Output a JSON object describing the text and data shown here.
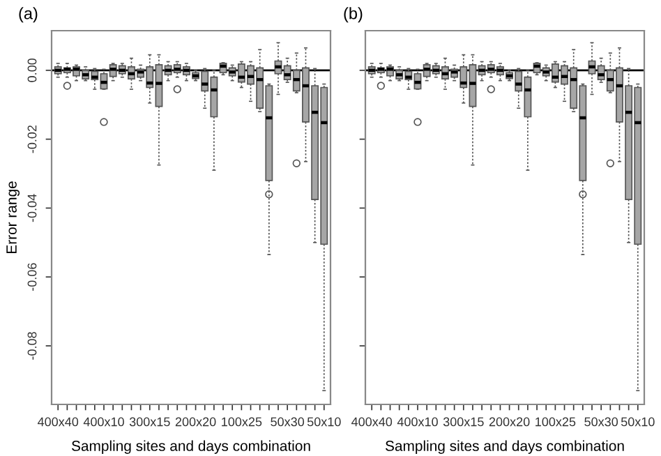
{
  "chart_data": [
    {
      "type": "box",
      "title": "(a)",
      "xlabel": "Sampling sites and days combination",
      "ylabel": "Error range",
      "categories": [
        "400x40",
        null,
        null,
        null,
        null,
        "400x10",
        null,
        null,
        null,
        null,
        "300x15",
        null,
        null,
        null,
        null,
        "200x20",
        null,
        null,
        null,
        null,
        "100x25",
        null,
        null,
        null,
        null,
        "50x30",
        null,
        null,
        null,
        "50x10"
      ],
      "ylim": [
        -0.097,
        0.0115
      ],
      "yticks": [
        {
          "value": 0,
          "label": "0.00"
        },
        {
          "value": -0.02,
          "label": "-0.02"
        },
        {
          "value": -0.04,
          "label": "-0.04"
        },
        {
          "value": -0.06,
          "label": "-0.06"
        },
        {
          "value": -0.08,
          "label": "-0.08"
        }
      ],
      "ref_lines": [
        {
          "axis": "y",
          "value": 0,
          "color": "#000000"
        }
      ],
      "series": [
        {
          "color": "#a6a6a6",
          "boxes": [
            {
              "low": -0.002,
              "q1": -0.001,
              "median": 0,
              "q3": 0.001,
              "high": 0.002
            },
            {
              "low": -0.002,
              "q1": -0.0007,
              "median": 0.0003,
              "q3": 0.0007,
              "high": 0.002,
              "outliers": [
                -0.0045
              ]
            },
            {
              "low": -0.003,
              "q1": -0.0016,
              "median": 0.0003,
              "q3": 0.001,
              "high": 0.0015
            },
            {
              "low": -0.003,
              "q1": -0.0025,
              "median": -0.0013,
              "q3": 0,
              "high": 0.001
            },
            {
              "low": -0.0055,
              "q1": -0.0027,
              "median": -0.002,
              "q3": -0.0003,
              "high": 0.0005
            },
            {
              "low": -0.0055,
              "q1": -0.0054,
              "median": -0.0035,
              "q3": -0.001,
              "high": 0.0003,
              "outliers": [
                -0.015
              ]
            },
            {
              "low": -0.003,
              "q1": -0.0018,
              "median": 0.0003,
              "q3": 0.0016,
              "high": 0.002
            },
            {
              "low": -0.002,
              "q1": -0.001,
              "median": 0,
              "q3": 0.0013,
              "high": 0.002
            },
            {
              "low": -0.0055,
              "q1": -0.0025,
              "median": -0.001,
              "q3": 0.001,
              "high": 0.0035
            },
            {
              "low": -0.003,
              "q1": -0.002,
              "median": -0.0005,
              "q3": 0.0003,
              "high": 0.0015
            },
            {
              "low": -0.0095,
              "q1": -0.005,
              "median": -0.0037,
              "q3": 0.001,
              "high": 0.0045
            },
            {
              "low": -0.0275,
              "q1": -0.0105,
              "median": -0.0038,
              "q3": 0.0016,
              "high": 0.0045
            },
            {
              "low": -0.003,
              "q1": -0.0013,
              "median": 0,
              "q3": 0.0013,
              "high": 0.0025
            },
            {
              "low": -0.002,
              "q1": -0.0007,
              "median": 0.0003,
              "q3": 0.0016,
              "high": 0.0025,
              "outliers": [
                -0.0055
              ]
            },
            {
              "low": -0.003,
              "q1": -0.0013,
              "median": 0,
              "q3": 0.001,
              "high": 0.002
            },
            {
              "low": -0.003,
              "q1": -0.0024,
              "median": -0.0016,
              "q3": -0.0007,
              "high": 0
            },
            {
              "low": -0.011,
              "q1": -0.006,
              "median": -0.004,
              "q3": -0.0003,
              "high": 0.0005
            },
            {
              "low": -0.029,
              "q1": -0.0135,
              "median": -0.0057,
              "q3": -0.002,
              "high": 0
            },
            {
              "low": -0.0013,
              "q1": -0.0007,
              "median": 0.0012,
              "q3": 0.002,
              "high": 0.0022
            },
            {
              "low": -0.003,
              "q1": -0.0016,
              "median": -0.0005,
              "q3": 0.0007,
              "high": 0.0015
            },
            {
              "low": -0.005,
              "q1": -0.0034,
              "median": -0.002,
              "q3": 0.0018,
              "high": 0.0025
            },
            {
              "low": -0.009,
              "q1": -0.004,
              "median": -0.0018,
              "q3": 0.0013,
              "high": 0.0025
            },
            {
              "low": -0.012,
              "q1": -0.011,
              "median": -0.0027,
              "q3": 0.0007,
              "high": 0.006
            },
            {
              "low": -0.0535,
              "q1": -0.032,
              "median": -0.0138,
              "q3": -0.0045,
              "high": -0.004,
              "outliers": [
                -0.036
              ]
            },
            {
              "low": -0.007,
              "q1": -0.001,
              "median": 0.001,
              "q3": 0.0027,
              "high": 0.008
            },
            {
              "low": -0.0035,
              "q1": -0.0027,
              "median": -0.0013,
              "q3": 0.0013,
              "high": 0.0035
            },
            {
              "low": -0.0065,
              "q1": -0.006,
              "median": -0.0027,
              "q3": 0,
              "high": 0.005,
              "outliers": [
                -0.027
              ]
            },
            {
              "low": -0.0265,
              "q1": -0.015,
              "median": -0.0045,
              "q3": 0.0007,
              "high": 0.0065
            },
            {
              "low": -0.05,
              "q1": -0.0375,
              "median": -0.0122,
              "q3": -0.0045,
              "high": 0.0005
            },
            {
              "low": -0.093,
              "q1": -0.0505,
              "median": -0.0152,
              "q3": -0.005,
              "high": -0.004
            }
          ]
        }
      ]
    },
    {
      "type": "box",
      "title": "(b)",
      "xlabel": "Sampling sites and days combination",
      "tick_labels": "x",
      "categories": [
        "400x40",
        null,
        null,
        null,
        null,
        "400x10",
        null,
        null,
        null,
        null,
        "300x15",
        null,
        null,
        null,
        null,
        "200x20",
        null,
        null,
        null,
        null,
        "100x25",
        null,
        null,
        null,
        null,
        "50x30",
        null,
        null,
        null,
        "50x10"
      ],
      "ylim": [
        -0.097,
        0.0115
      ],
      "yticks": [
        {
          "value": 0,
          "label": null
        },
        {
          "value": -0.02,
          "label": null
        },
        {
          "value": -0.04,
          "label": null
        },
        {
          "value": -0.06,
          "label": null
        },
        {
          "value": -0.08,
          "label": null
        }
      ],
      "ref_lines": [
        {
          "axis": "y",
          "value": 0,
          "color": "#000000"
        }
      ],
      "series": [
        {
          "color": "#a6a6a6",
          "boxes": [
            {
              "low": -0.002,
              "q1": -0.001,
              "median": 0,
              "q3": 0.001,
              "high": 0.002
            },
            {
              "low": -0.002,
              "q1": -0.0007,
              "median": 0.0003,
              "q3": 0.0007,
              "high": 0.002,
              "outliers": [
                -0.0045
              ]
            },
            {
              "low": -0.003,
              "q1": -0.0016,
              "median": 0.0003,
              "q3": 0.001,
              "high": 0.0015
            },
            {
              "low": -0.003,
              "q1": -0.0025,
              "median": -0.0013,
              "q3": 0,
              "high": 0.001
            },
            {
              "low": -0.0055,
              "q1": -0.0027,
              "median": -0.002,
              "q3": -0.0003,
              "high": 0.0005
            },
            {
              "low": -0.0055,
              "q1": -0.0054,
              "median": -0.0035,
              "q3": -0.001,
              "high": 0.0003,
              "outliers": [
                -0.015
              ]
            },
            {
              "low": -0.003,
              "q1": -0.0018,
              "median": 0.0003,
              "q3": 0.0016,
              "high": 0.002
            },
            {
              "low": -0.002,
              "q1": -0.001,
              "median": 0,
              "q3": 0.0013,
              "high": 0.002
            },
            {
              "low": -0.0055,
              "q1": -0.0025,
              "median": -0.001,
              "q3": 0.001,
              "high": 0.0035
            },
            {
              "low": -0.003,
              "q1": -0.002,
              "median": -0.0005,
              "q3": 0.0003,
              "high": 0.0015
            },
            {
              "low": -0.0095,
              "q1": -0.005,
              "median": -0.0037,
              "q3": 0.001,
              "high": 0.0045
            },
            {
              "low": -0.0275,
              "q1": -0.0105,
              "median": -0.0038,
              "q3": 0.0016,
              "high": 0.0045
            },
            {
              "low": -0.003,
              "q1": -0.0013,
              "median": 0,
              "q3": 0.0013,
              "high": 0.0025
            },
            {
              "low": -0.002,
              "q1": -0.0007,
              "median": 0.0003,
              "q3": 0.0016,
              "high": 0.0025,
              "outliers": [
                -0.0055
              ]
            },
            {
              "low": -0.003,
              "q1": -0.0013,
              "median": 0,
              "q3": 0.001,
              "high": 0.002
            },
            {
              "low": -0.003,
              "q1": -0.0024,
              "median": -0.0016,
              "q3": -0.0007,
              "high": 0
            },
            {
              "low": -0.011,
              "q1": -0.006,
              "median": -0.004,
              "q3": -0.0003,
              "high": 0.0005
            },
            {
              "low": -0.029,
              "q1": -0.0135,
              "median": -0.0057,
              "q3": -0.002,
              "high": 0
            },
            {
              "low": -0.0013,
              "q1": -0.0007,
              "median": 0.0012,
              "q3": 0.002,
              "high": 0.0022
            },
            {
              "low": -0.003,
              "q1": -0.0016,
              "median": -0.0005,
              "q3": 0.0007,
              "high": 0.0015
            },
            {
              "low": -0.005,
              "q1": -0.0034,
              "median": -0.002,
              "q3": 0.0018,
              "high": 0.0025
            },
            {
              "low": -0.009,
              "q1": -0.004,
              "median": -0.0018,
              "q3": 0.0013,
              "high": 0.0025
            },
            {
              "low": -0.012,
              "q1": -0.011,
              "median": -0.0027,
              "q3": 0.0007,
              "high": 0.006
            },
            {
              "low": -0.0535,
              "q1": -0.032,
              "median": -0.0138,
              "q3": -0.0045,
              "high": -0.004,
              "outliers": [
                -0.036
              ]
            },
            {
              "low": -0.007,
              "q1": -0.001,
              "median": 0.001,
              "q3": 0.0027,
              "high": 0.008
            },
            {
              "low": -0.0035,
              "q1": -0.0027,
              "median": -0.0013,
              "q3": 0.0013,
              "high": 0.0035
            },
            {
              "low": -0.0065,
              "q1": -0.006,
              "median": -0.0027,
              "q3": 0,
              "high": 0.005,
              "outliers": [
                -0.027
              ]
            },
            {
              "low": -0.0265,
              "q1": -0.015,
              "median": -0.0045,
              "q3": 0.0007,
              "high": 0.0065
            },
            {
              "low": -0.05,
              "q1": -0.0375,
              "median": -0.0122,
              "q3": -0.0045,
              "high": 0.0005
            },
            {
              "low": -0.093,
              "q1": -0.0505,
              "median": -0.0152,
              "q3": -0.005,
              "high": -0.004
            }
          ]
        }
      ]
    }
  ]
}
